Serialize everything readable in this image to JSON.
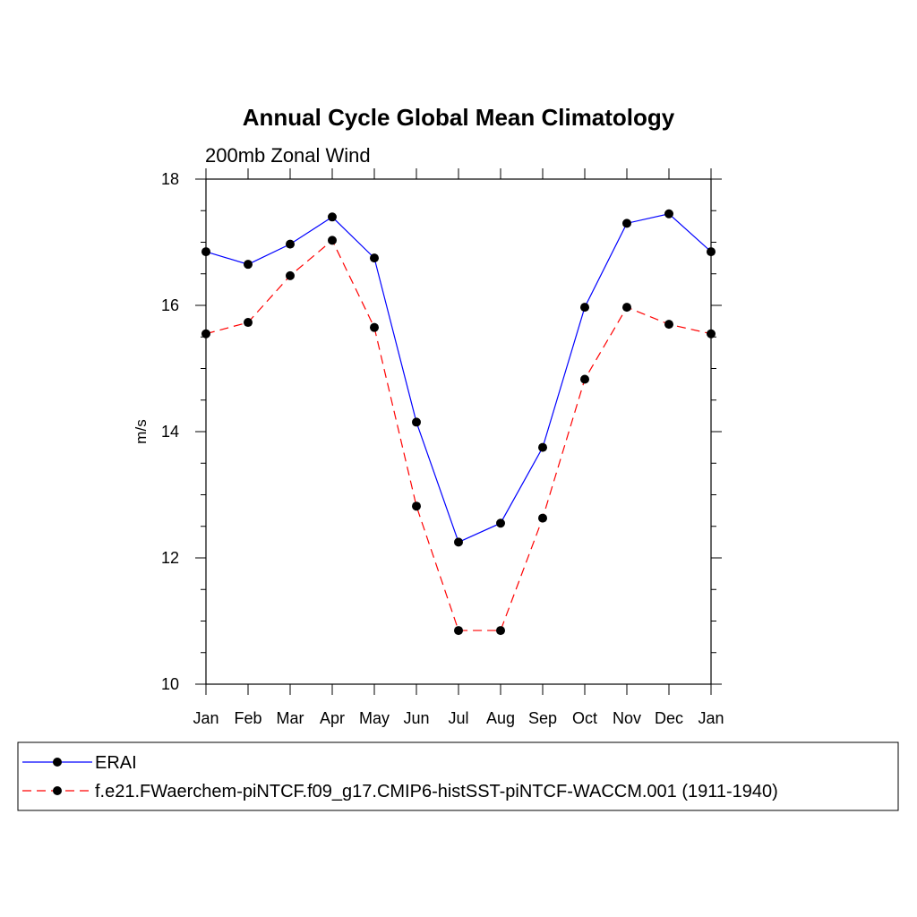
{
  "chart_data": {
    "type": "line",
    "title": "Annual Cycle Global Mean Climatology",
    "subtitle": "200mb Zonal Wind",
    "xlabel": "",
    "ylabel": "m/s",
    "categories": [
      "Jan",
      "Feb",
      "Mar",
      "Apr",
      "May",
      "Jun",
      "Jul",
      "Aug",
      "Sep",
      "Oct",
      "Nov",
      "Dec",
      "Jan"
    ],
    "ylim": [
      10,
      18
    ],
    "yticks": [
      "10",
      "12",
      "14",
      "16",
      "18"
    ],
    "grid": false,
    "legend_position": "bottom",
    "series": [
      {
        "name": "ERAI",
        "color": "#0000ff",
        "dashed": false,
        "marker": "circle",
        "values": [
          16.85,
          16.65,
          16.97,
          17.4,
          16.75,
          14.15,
          12.25,
          12.55,
          13.75,
          15.97,
          17.3,
          17.45,
          16.85
        ]
      },
      {
        "name": "f.e21.FWaerchem-piNTCF.f09_g17.CMIP6-histSST-piNTCF-WACCM.001 (1911-1940)",
        "color": "#ff0000",
        "dashed": true,
        "marker": "circle",
        "values": [
          15.55,
          15.73,
          16.47,
          17.03,
          15.65,
          12.82,
          10.85,
          10.85,
          12.63,
          14.83,
          15.97,
          15.7,
          15.55
        ]
      }
    ]
  }
}
